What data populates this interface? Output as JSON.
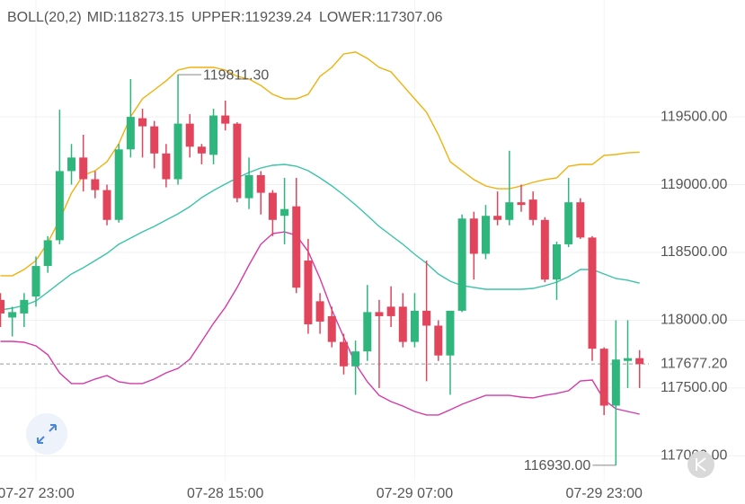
{
  "chart_data": {
    "type": "candlestick",
    "indicator": "BOLL(20,2)",
    "categories": [
      null,
      null,
      null,
      "07-27 23:00",
      null,
      null,
      null,
      null,
      null,
      null,
      null,
      null,
      null,
      null,
      null,
      null,
      null,
      null,
      null,
      "07-28 15:00",
      null,
      null,
      null,
      null,
      null,
      null,
      null,
      null,
      null,
      null,
      null,
      null,
      null,
      null,
      null,
      "07-29 07:00",
      null,
      null,
      null,
      null,
      null,
      null,
      null,
      null,
      null,
      null,
      null,
      null,
      null,
      null,
      null,
      "07-29 23:00",
      null,
      null,
      null
    ],
    "open": [
      118150,
      118020,
      118050,
      118175,
      118400,
      118590,
      119100,
      119200,
      119040,
      118960,
      118740,
      119260,
      119490,
      119430,
      119230,
      119040,
      119450,
      119280,
      119220,
      119510,
      119450,
      118900,
      119070,
      118940,
      118770,
      118840,
      118440,
      118140,
      118030,
      117840,
      117660,
      117770,
      118060,
      118100,
      118100,
      117840,
      118070,
      117960,
      117740,
      118070,
      118750,
      118490,
      118770,
      118740,
      118870,
      118890,
      118740,
      118300,
      118560,
      118870,
      118610,
      117790,
      117370,
      117700,
      117720
    ],
    "high": [
      118200,
      118100,
      118200,
      118470,
      118620,
      119553,
      119300,
      119368,
      119100,
      119000,
      119300,
      119779,
      119560,
      119470,
      119300,
      119811.3,
      119520,
      119300,
      119560,
      119620,
      119460,
      119200,
      119100,
      118960,
      119050,
      119050,
      118600,
      118200,
      118100,
      117900,
      117850,
      118260,
      118150,
      118250,
      118200,
      118200,
      118440,
      118000,
      118070,
      118780,
      118800,
      118850,
      118950,
      119250,
      119000,
      118950,
      118760,
      118580,
      119050,
      118900,
      118620,
      117800,
      118000,
      118000,
      117780
    ],
    "low": [
      117950,
      117880,
      117950,
      118100,
      118350,
      118560,
      119000,
      118950,
      118900,
      118700,
      118720,
      119200,
      119200,
      119120,
      118980,
      119000,
      119200,
      119150,
      119150,
      119400,
      118870,
      118820,
      118780,
      118620,
      118560,
      118200,
      117900,
      117900,
      117800,
      117600,
      117450,
      117700,
      117500,
      117950,
      117800,
      117800,
      117550,
      117700,
      117450,
      118060,
      118300,
      118450,
      118700,
      118700,
      118800,
      118700,
      118280,
      118150,
      118540,
      118600,
      117700,
      117300,
      116930,
      117500,
      117500
    ],
    "close": [
      118050,
      118060,
      118150,
      118400,
      118590,
      119100,
      119200,
      119040,
      118960,
      118740,
      119260,
      119500,
      119430,
      119230,
      119040,
      119450,
      119280,
      119230,
      119510,
      119450,
      118900,
      119070,
      118940,
      118740,
      118820,
      118240,
      117970,
      117990,
      117840,
      117660,
      117770,
      118060,
      118030,
      118030,
      117840,
      118070,
      117960,
      117740,
      118070,
      118750,
      118490,
      118770,
      118740,
      118870,
      118850,
      118740,
      118300,
      118560,
      118870,
      118610,
      117790,
      117370,
      117710,
      117720,
      117677.2
    ],
    "up_color": "#2eb67d",
    "down_color": "#e2445c",
    "series": [
      {
        "name": "MID:118273.15",
        "color": "#3cc3aa",
        "values": [
          118076,
          118089,
          118109,
          118142,
          118208,
          118275,
          118341,
          118387,
          118440,
          118493,
          118560,
          118606,
          118652,
          118692,
          118739,
          118785,
          118838,
          118904,
          118957,
          119004,
          119050,
          119090,
          119123,
          119143,
          119149,
          119136,
          119103,
          119050,
          118990,
          118924,
          118851,
          118772,
          118692,
          118626,
          118560,
          118487,
          118420,
          118341,
          118288,
          118255,
          118242,
          118228,
          118228,
          118228,
          118228,
          118235,
          118255,
          118281,
          118321,
          118374,
          118374,
          118341,
          118308,
          118295,
          118273.15
        ]
      },
      {
        "name": "UPPER:119239.24",
        "color": "#f0b10c",
        "values": [
          118328,
          118328,
          118374,
          118440,
          118573,
          118739,
          118937,
          119070,
          119103,
          119169,
          119302,
          119501,
          119633,
          119699,
          119766,
          119845,
          119865,
          119865,
          119865,
          119845,
          119799,
          119779,
          119732,
          119666,
          119633,
          119633,
          119666,
          119799,
          119865,
          119964,
          119978,
          119931,
          119865,
          119832,
          119732,
          119633,
          119534,
          119368,
          119169,
          119103,
          119037,
          118990,
          118970,
          118970,
          118990,
          119017,
          119037,
          119050,
          119136,
          119149,
          119149,
          119216,
          119222,
          119235,
          119239.24
        ]
      },
      {
        "name": "LOWER:117307.06",
        "color": "#d43aa8",
        "values": [
          117844,
          117844,
          117837,
          117811,
          117745,
          117612,
          117533,
          117533,
          117566,
          117592,
          117546,
          117533,
          117533,
          117566,
          117612,
          117645,
          117712,
          117844,
          117977,
          118096,
          118242,
          118407,
          118560,
          118639,
          118652,
          118626,
          118507,
          118308,
          118076,
          117877,
          117678,
          117546,
          117446,
          117400,
          117367,
          117327,
          117301,
          117301,
          117340,
          117380,
          117413,
          117446,
          117446,
          117446,
          117433,
          117427,
          117446,
          117460,
          117480,
          117552,
          117559,
          117413,
          117347,
          117327,
          117307.06
        ]
      }
    ],
    "ylim": [
      116850,
      120130
    ],
    "yticks": [
      {
        "value": 117000,
        "label": "117000.00"
      },
      {
        "value": 117500,
        "label": "117500.00"
      },
      {
        "value": 118000,
        "label": "118000.00"
      },
      {
        "value": 118500,
        "label": "118500.00"
      },
      {
        "value": 119000,
        "label": "119000.00"
      },
      {
        "value": 119500,
        "label": "119500.00"
      }
    ],
    "current_price": {
      "value": 117677.2,
      "label": "117677.20",
      "color": "#e2445c"
    },
    "annotations": [
      {
        "index": 15,
        "value": 119811.3,
        "label": "119811.30"
      },
      {
        "index": 52,
        "value": 116930,
        "label": "116930.00"
      }
    ],
    "grid": true
  }
}
